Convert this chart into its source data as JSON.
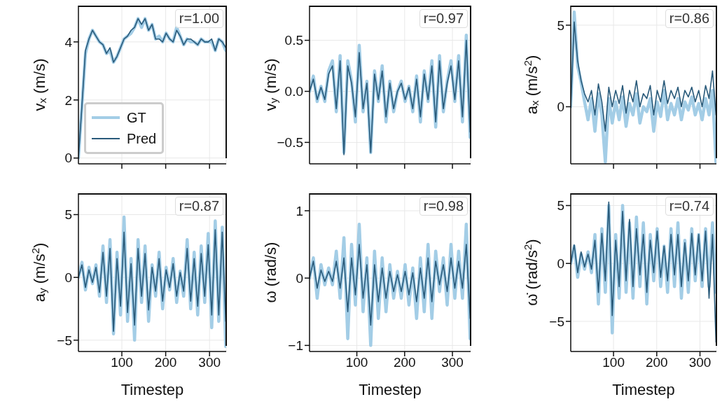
{
  "chart_data": [
    {
      "type": "line",
      "ylabel": "v$_{x}$ (m/s)",
      "xlim": [
        1,
        338
      ],
      "ylim": [
        -0.2,
        5.25
      ],
      "xticks": [
        100,
        200,
        300
      ],
      "yticks": [
        0,
        2,
        4
      ],
      "grid": true,
      "tick_labels": "y",
      "legend": "bottom left",
      "annotations": [
        "r=1.00"
      ],
      "x": [
        1,
        9,
        17,
        25,
        33,
        41,
        49,
        57,
        65,
        73,
        81,
        89,
        97,
        105,
        113,
        121,
        129,
        137,
        145,
        153,
        161,
        169,
        177,
        185,
        193,
        201,
        209,
        217,
        225,
        233,
        241,
        249,
        257,
        265,
        273,
        281,
        289,
        297,
        305,
        313,
        321,
        329,
        337
      ],
      "series": [
        {
          "name": "GT",
          "color": "#a3cde6",
          "values": [
            0,
            1.8,
            3.6,
            4.1,
            4.4,
            4.2,
            4.0,
            3.9,
            3.6,
            3.7,
            3.3,
            3.5,
            3.8,
            4.1,
            4.2,
            4.3,
            4.5,
            4.8,
            4.5,
            4.8,
            4.4,
            4.6,
            4.1,
            4.2,
            4.0,
            4.3,
            4.1,
            4.0,
            4.5,
            4.2,
            3.9,
            4.1,
            4.0,
            4.0,
            3.9,
            4.1,
            4.0,
            4.0,
            4.0,
            3.7,
            4.1,
            4.0,
            3.7
          ]
        },
        {
          "name": "Pred",
          "color": "#295a7a",
          "values": [
            0,
            1.8,
            3.7,
            4.1,
            4.4,
            4.2,
            4.0,
            3.9,
            3.6,
            3.8,
            3.3,
            3.5,
            3.8,
            4.1,
            4.2,
            4.4,
            4.5,
            4.8,
            4.6,
            4.8,
            4.4,
            4.6,
            4.1,
            4.1,
            4.0,
            4.3,
            4.1,
            4.0,
            4.4,
            4.2,
            3.9,
            4.1,
            4.1,
            4.0,
            3.9,
            4.1,
            4.0,
            4.0,
            4.1,
            3.7,
            4.1,
            4.0,
            3.8
          ]
        }
      ]
    },
    {
      "type": "line",
      "ylabel": "v$_{y}$ (m/s)",
      "xlim": [
        1,
        338
      ],
      "ylim": [
        -0.71,
        0.84
      ],
      "xticks": [
        100,
        200,
        300
      ],
      "yticks": [
        {
          "value": -0.5,
          "label": "−0.5"
        },
        {
          "value": 0,
          "label": "0.0"
        },
        0.5
      ],
      "grid": true,
      "tick_labels": "y",
      "annotations": [
        "r=0.97"
      ],
      "x": [
        1,
        9,
        17,
        25,
        33,
        41,
        49,
        57,
        65,
        73,
        81,
        89,
        97,
        105,
        113,
        121,
        129,
        137,
        145,
        153,
        161,
        169,
        177,
        185,
        193,
        201,
        209,
        217,
        225,
        233,
        241,
        249,
        257,
        265,
        273,
        281,
        289,
        297,
        305,
        313,
        321,
        329,
        337
      ],
      "series": [
        {
          "color": "#a3cde6",
          "values": [
            0.0,
            0.15,
            -0.1,
            0.05,
            -0.1,
            0.2,
            0.3,
            -0.2,
            0.35,
            -0.6,
            0.3,
            0.1,
            -0.3,
            0.45,
            -0.2,
            0.1,
            -0.6,
            0.2,
            -0.1,
            0.25,
            -0.3,
            0.1,
            -0.2,
            0.0,
            0.1,
            -0.1,
            0.05,
            -0.2,
            0.15,
            -0.3,
            0.2,
            -0.1,
            0.3,
            -0.35,
            0.35,
            -0.2,
            0.1,
            0.3,
            -0.1,
            0.35,
            -0.3,
            0.55,
            -0.45
          ]
        },
        {
          "color": "#295a7a",
          "values": [
            0.0,
            0.12,
            -0.08,
            0.04,
            -0.08,
            0.17,
            0.25,
            -0.17,
            0.3,
            -0.62,
            0.25,
            0.08,
            -0.25,
            0.38,
            -0.17,
            0.08,
            -0.6,
            0.17,
            -0.08,
            0.2,
            -0.25,
            0.08,
            -0.17,
            0.0,
            0.08,
            -0.08,
            0.04,
            -0.17,
            0.12,
            -0.25,
            0.17,
            -0.08,
            0.25,
            -0.3,
            0.3,
            -0.17,
            0.08,
            0.25,
            -0.08,
            0.3,
            -0.25,
            0.5,
            -0.4
          ]
        }
      ]
    },
    {
      "type": "line",
      "ylabel": "a$_{x}$ (m/s$^{2}$)",
      "xlim": [
        1,
        338
      ],
      "ylim": [
        -3.5,
        6.2
      ],
      "xticks": [
        100,
        200,
        300
      ],
      "yticks": [
        0,
        5
      ],
      "grid": true,
      "tick_labels": "y",
      "annotations": [
        "r=0.86"
      ],
      "x": [
        1,
        9,
        17,
        25,
        33,
        41,
        49,
        57,
        65,
        73,
        81,
        89,
        97,
        105,
        113,
        121,
        129,
        137,
        145,
        153,
        161,
        169,
        177,
        185,
        193,
        201,
        209,
        217,
        225,
        233,
        241,
        249,
        257,
        265,
        273,
        281,
        289,
        297,
        305,
        313,
        321,
        329,
        337
      ],
      "series": [
        {
          "color": "#a3cde6",
          "values": [
            0,
            5.8,
            2.5,
            1.5,
            0.3,
            -0.8,
            0.5,
            -1.5,
            0.8,
            -0.5,
            -3.4,
            0.5,
            -1.0,
            0.3,
            -0.8,
            0.6,
            -1.2,
            0.2,
            -0.5,
            0.8,
            -1.0,
            0.0,
            -0.3,
            0.5,
            -1.5,
            0.3,
            -0.6,
            1.0,
            -0.8,
            0.2,
            -0.5,
            0.5,
            -0.8,
            0.3,
            -0.2,
            0.6,
            -0.5,
            0.2,
            -0.8,
            0.5,
            -0.5,
            1.0,
            -3.4
          ]
        },
        {
          "color": "#295a7a",
          "values": [
            0,
            5.2,
            2.8,
            1.6,
            0.8,
            0.3,
            1.0,
            -0.5,
            1.4,
            0.3,
            -1.5,
            1.2,
            0.0,
            1.0,
            0.2,
            1.3,
            -0.4,
            1.0,
            0.3,
            1.6,
            0.0,
            0.8,
            0.5,
            1.3,
            -0.5,
            1.0,
            0.3,
            1.6,
            0.2,
            1.0,
            0.5,
            1.2,
            0.0,
            1.0,
            0.6,
            1.2,
            0.3,
            1.0,
            0.0,
            1.3,
            0.5,
            2.2,
            -0.5
          ]
        }
      ]
    },
    {
      "type": "line",
      "xlabel": "Timestep",
      "ylabel": "a$_{y}$ (m/s$^{2}$)",
      "xlim": [
        1,
        338
      ],
      "ylim": [
        -5.9,
        6.7
      ],
      "xticks": [
        100,
        200,
        300
      ],
      "yticks": [
        {
          "value": -5,
          "label": "−5"
        },
        0,
        5
      ],
      "grid": true,
      "annotations": [
        "r=0.87"
      ],
      "x": [
        1,
        9,
        17,
        25,
        33,
        41,
        49,
        57,
        65,
        73,
        81,
        89,
        97,
        105,
        113,
        121,
        129,
        137,
        145,
        153,
        161,
        169,
        177,
        185,
        193,
        201,
        209,
        217,
        225,
        233,
        241,
        249,
        257,
        265,
        273,
        281,
        289,
        297,
        305,
        313,
        321,
        329,
        337
      ],
      "series": [
        {
          "color": "#a3cde6",
          "values": [
            0,
            1.2,
            -1.0,
            0.8,
            -0.5,
            1.0,
            -1.5,
            2.5,
            -2.0,
            3.0,
            -4.5,
            2.0,
            -3.0,
            4.8,
            -3.5,
            1.5,
            -5.0,
            3.0,
            -2.0,
            2.5,
            -3.5,
            1.0,
            -1.5,
            2.0,
            -2.5,
            0.8,
            -1.0,
            1.5,
            -2.0,
            0.5,
            -1.5,
            3.0,
            -2.5,
            2.0,
            -3.0,
            2.5,
            -2.0,
            3.5,
            -4.0,
            4.5,
            -3.5,
            4.0,
            -5.5
          ]
        },
        {
          "color": "#295a7a",
          "values": [
            0,
            1.0,
            -0.8,
            0.6,
            -0.4,
            0.8,
            -1.2,
            2.0,
            -1.5,
            2.3,
            -4.3,
            1.5,
            -2.3,
            3.6,
            -2.8,
            1.1,
            -3.8,
            2.3,
            -1.5,
            1.9,
            -2.6,
            0.8,
            -1.1,
            1.5,
            -1.9,
            0.6,
            -0.8,
            1.1,
            -1.5,
            0.4,
            -1.1,
            2.3,
            -1.9,
            1.5,
            -2.3,
            1.9,
            -1.5,
            2.6,
            -3.0,
            3.8,
            -3.0,
            3.6,
            -3.5
          ]
        }
      ]
    },
    {
      "type": "line",
      "xlabel": "Timestep",
      "ylabel": "ω (rad/s)",
      "xlim": [
        1,
        338
      ],
      "ylim": [
        -1.09,
        1.26
      ],
      "xticks": [
        100,
        200,
        300
      ],
      "yticks": [
        {
          "value": -1,
          "label": "−1"
        },
        0,
        1
      ],
      "grid": true,
      "annotations": [
        "r=0.98"
      ],
      "x": [
        1,
        9,
        17,
        25,
        33,
        41,
        49,
        57,
        65,
        73,
        81,
        89,
        97,
        105,
        113,
        121,
        129,
        137,
        145,
        153,
        161,
        169,
        177,
        185,
        193,
        201,
        209,
        217,
        225,
        233,
        241,
        249,
        257,
        265,
        273,
        281,
        289,
        297,
        305,
        313,
        321,
        329,
        337
      ],
      "series": [
        {
          "color": "#a3cde6",
          "values": [
            0,
            0.3,
            -0.3,
            0.2,
            -0.1,
            0.15,
            -0.1,
            0.4,
            -0.3,
            0.6,
            -0.9,
            0.5,
            -0.4,
            0.8,
            -0.5,
            0.3,
            -1.0,
            0.4,
            -0.6,
            0.3,
            -0.5,
            0.2,
            -0.3,
            0.1,
            -0.3,
            0.2,
            -0.4,
            0.15,
            -0.6,
            0.3,
            -0.5,
            0.5,
            -0.6,
            0.4,
            -0.2,
            0.3,
            -0.4,
            0.5,
            -0.3,
            0.4,
            -0.3,
            0.8,
            -0.9
          ]
        },
        {
          "color": "#295a7a",
          "values": [
            0,
            0.25,
            -0.15,
            0.12,
            -0.05,
            0.1,
            -0.05,
            0.25,
            -0.15,
            0.3,
            -0.5,
            0.3,
            -0.25,
            0.5,
            -0.3,
            0.2,
            -0.7,
            0.2,
            -0.35,
            0.15,
            -0.3,
            0.1,
            -0.2,
            0.05,
            -0.2,
            0.1,
            -0.25,
            0.08,
            -0.35,
            0.15,
            -0.3,
            0.3,
            -0.35,
            0.25,
            -0.1,
            0.2,
            -0.2,
            0.3,
            -0.15,
            0.25,
            -0.15,
            0.5,
            -0.6
          ]
        }
      ]
    },
    {
      "type": "line",
      "xlabel": "Timestep",
      "ylabel": "ω̇ (rad/s$^{2}$)",
      "xlim": [
        1,
        338
      ],
      "ylim": [
        -7.6,
        6.06
      ],
      "xticks": [
        100,
        200,
        300
      ],
      "yticks": [
        {
          "value": -5,
          "label": "−5"
        },
        0,
        5
      ],
      "grid": true,
      "annotations": [
        "r=0.74"
      ],
      "x": [
        1,
        9,
        17,
        25,
        33,
        41,
        49,
        57,
        65,
        73,
        81,
        89,
        97,
        105,
        113,
        121,
        129,
        137,
        145,
        153,
        161,
        169,
        177,
        185,
        193,
        201,
        209,
        217,
        225,
        233,
        241,
        249,
        257,
        265,
        273,
        281,
        289,
        297,
        305,
        313,
        321,
        329,
        337
      ],
      "series": [
        {
          "color": "#a3cde6",
          "values": [
            0,
            1.5,
            -1.2,
            0.8,
            -0.5,
            1.0,
            -0.8,
            2.5,
            -3.5,
            3.0,
            -2.5,
            5.0,
            -6.0,
            2.5,
            -3.0,
            5.0,
            -2.5,
            3.5,
            -3.0,
            4.0,
            -2.0,
            3.5,
            -3.5,
            2.5,
            -1.5,
            3.0,
            -2.0,
            1.5,
            -2.5,
            3.0,
            -2.0,
            3.5,
            -3.0,
            2.0,
            -2.5,
            3.0,
            -1.5,
            2.5,
            -2.0,
            3.0,
            -2.0,
            3.5,
            -2.5
          ]
        },
        {
          "color": "#295a7a",
          "values": [
            0,
            1.6,
            -0.8,
            1.0,
            -0.3,
            0.8,
            -0.5,
            2.0,
            -2.5,
            2.6,
            -1.5,
            5.3,
            -4.5,
            2.0,
            -2.0,
            4.5,
            -1.5,
            3.8,
            -2.0,
            3.0,
            -1.0,
            2.5,
            -2.5,
            2.0,
            -0.8,
            2.8,
            -1.2,
            1.5,
            -1.5,
            2.5,
            -1.0,
            2.5,
            -2.0,
            1.8,
            -1.5,
            2.6,
            -1.0,
            2.5,
            -1.5,
            2.8,
            -3.0,
            2.5,
            -6.8
          ]
        }
      ]
    }
  ]
}
